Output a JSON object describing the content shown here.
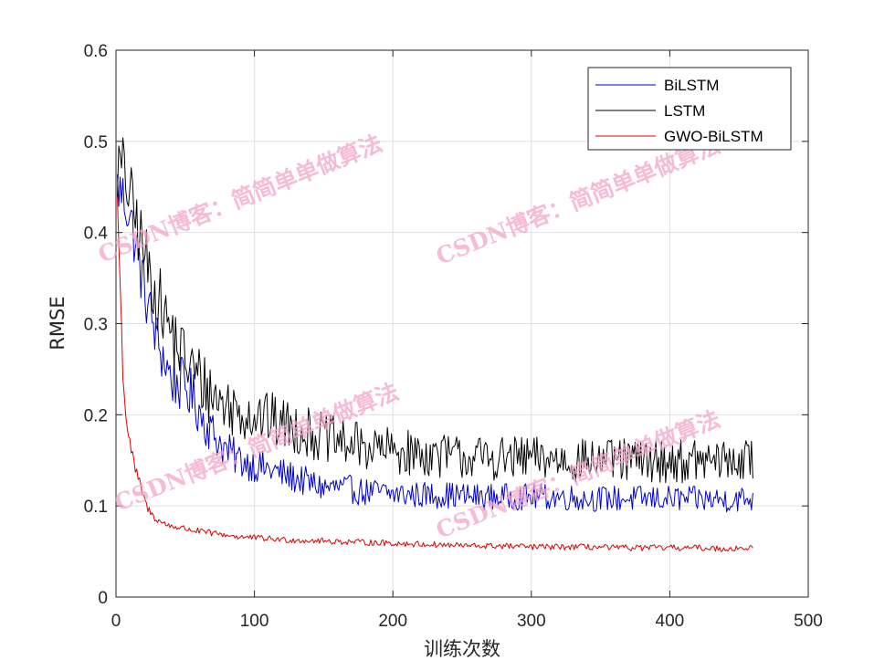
{
  "chart_data": {
    "type": "line",
    "title": "",
    "xlabel": "训练次数",
    "ylabel": "RMSE",
    "xlim": [
      0,
      500
    ],
    "ylim": [
      0,
      0.6
    ],
    "xticks": [
      0,
      100,
      200,
      300,
      400,
      500
    ],
    "yticks": [
      0,
      0.1,
      0.2,
      0.3,
      0.4,
      0.5,
      0.6
    ],
    "xtick_labels": [
      "0",
      "100",
      "200",
      "300",
      "400",
      "500"
    ],
    "ytick_labels": [
      "0",
      "0.1",
      "0.2",
      "0.3",
      "0.4",
      "0.5",
      "0.6"
    ],
    "grid": true,
    "legend": "top-right",
    "watermark": "CSDN博客：简简单单做算法",
    "series": [
      {
        "name": "BiLSTM",
        "color": "#0000cc",
        "x": [
          1,
          5,
          10,
          15,
          20,
          25,
          30,
          35,
          40,
          45,
          50,
          55,
          60,
          65,
          70,
          75,
          80,
          90,
          100,
          110,
          120,
          130,
          140,
          150,
          160,
          170,
          180,
          190,
          200,
          220,
          240,
          260,
          280,
          300,
          320,
          340,
          360,
          380,
          400,
          420,
          440,
          460
        ],
        "y": [
          0.45,
          0.44,
          0.42,
          0.38,
          0.34,
          0.31,
          0.28,
          0.26,
          0.24,
          0.235,
          0.23,
          0.22,
          0.205,
          0.19,
          0.18,
          0.17,
          0.16,
          0.15,
          0.145,
          0.14,
          0.135,
          0.13,
          0.125,
          0.12,
          0.12,
          0.118,
          0.115,
          0.115,
          0.113,
          0.112,
          0.112,
          0.11,
          0.11,
          0.11,
          0.11,
          0.108,
          0.108,
          0.108,
          0.108,
          0.107,
          0.107,
          0.108
        ]
      },
      {
        "name": "LSTM",
        "color": "#000000",
        "x": [
          1,
          5,
          10,
          15,
          20,
          25,
          30,
          35,
          40,
          45,
          50,
          55,
          60,
          65,
          70,
          75,
          80,
          90,
          100,
          110,
          120,
          130,
          140,
          150,
          160,
          170,
          180,
          190,
          200,
          220,
          240,
          260,
          280,
          300,
          320,
          340,
          360,
          380,
          400,
          420,
          440,
          460
        ],
        "y": [
          0.47,
          0.47,
          0.44,
          0.41,
          0.38,
          0.35,
          0.33,
          0.31,
          0.29,
          0.275,
          0.26,
          0.25,
          0.24,
          0.23,
          0.222,
          0.215,
          0.21,
          0.205,
          0.2,
          0.195,
          0.19,
          0.185,
          0.18,
          0.175,
          0.17,
          0.167,
          0.165,
          0.162,
          0.16,
          0.157,
          0.155,
          0.153,
          0.152,
          0.152,
          0.151,
          0.15,
          0.15,
          0.15,
          0.149,
          0.149,
          0.149,
          0.15
        ]
      },
      {
        "name": "GWO-BiLSTM",
        "color": "#dd0000",
        "x": [
          1,
          3,
          5,
          7,
          10,
          13,
          16,
          19,
          22,
          26,
          30,
          35,
          40,
          50,
          60,
          70,
          80,
          90,
          100,
          120,
          140,
          160,
          180,
          200,
          220,
          240,
          260,
          280,
          300,
          320,
          340,
          360,
          380,
          400,
          420,
          440,
          460
        ],
        "y": [
          0.44,
          0.34,
          0.25,
          0.2,
          0.17,
          0.145,
          0.13,
          0.115,
          0.1,
          0.09,
          0.085,
          0.08,
          0.078,
          0.075,
          0.072,
          0.07,
          0.068,
          0.066,
          0.065,
          0.063,
          0.062,
          0.061,
          0.06,
          0.059,
          0.058,
          0.057,
          0.056,
          0.056,
          0.055,
          0.055,
          0.055,
          0.054,
          0.054,
          0.054,
          0.054,
          0.053,
          0.054
        ]
      }
    ]
  }
}
